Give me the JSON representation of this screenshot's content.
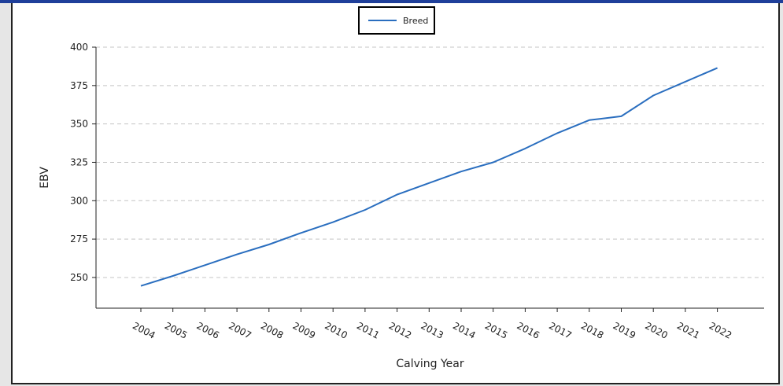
{
  "chart_data": {
    "type": "line",
    "categories": [
      "2004",
      "2005",
      "2006",
      "2007",
      "2008",
      "2009",
      "2010",
      "2011",
      "2012",
      "2013",
      "2014",
      "2015",
      "2016",
      "2017",
      "2018",
      "2019",
      "2020",
      "2021",
      "2022"
    ],
    "series": [
      {
        "name": "Breed",
        "color": "#2a6ebf",
        "values": [
          244.5,
          251,
          258,
          265,
          271.5,
          279,
          286,
          294,
          304,
          311.5,
          319,
          325,
          334,
          344,
          352.5,
          355,
          368.5,
          377.5,
          386.5
        ]
      }
    ],
    "xlabel": "Calving Year",
    "ylabel": "EBV",
    "yticks": [
      250,
      275,
      300,
      325,
      350,
      375,
      400
    ],
    "ylim": [
      230,
      400
    ],
    "grid": "horizontal dashed",
    "legend_position": "top-center"
  }
}
